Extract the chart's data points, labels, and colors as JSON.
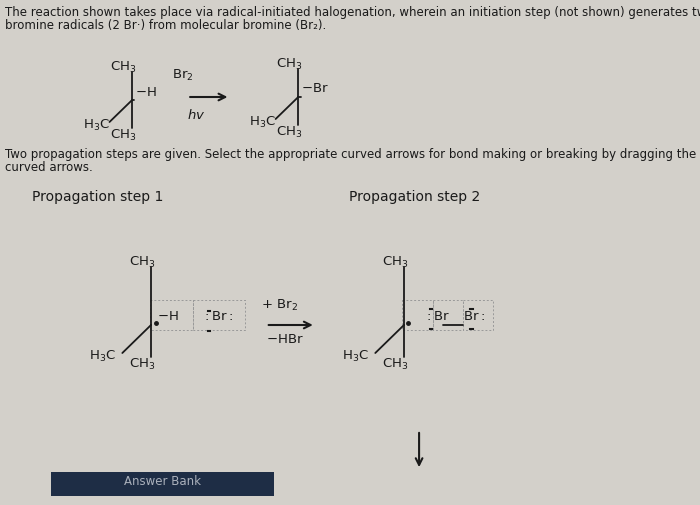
{
  "bg_color": "#d3d0ca",
  "text_color": "#1a1a1a",
  "title_text1": "The reaction shown takes place via radical-initiated halogenation, wherein an initiation step (not shown) generates two",
  "title_text2": "bromine radicals (2 Br·) from molecular bromine (Br₂).",
  "propagation_text": "Two propagation steps are given. Select the appropriate curved arrows for bond making or breaking by dragging the",
  "propagation_text2": "curved arrows.",
  "prop1_label": "Propagation step 1",
  "prop2_label": "Propagation step 2",
  "answer_bank_label": "Answer Bank",
  "answer_bank_bg": "#1e2d45",
  "answer_bank_text": "#aab0bb",
  "font_size_text": 8.5,
  "font_size_mol": 9.5,
  "font_size_header": 10.0
}
